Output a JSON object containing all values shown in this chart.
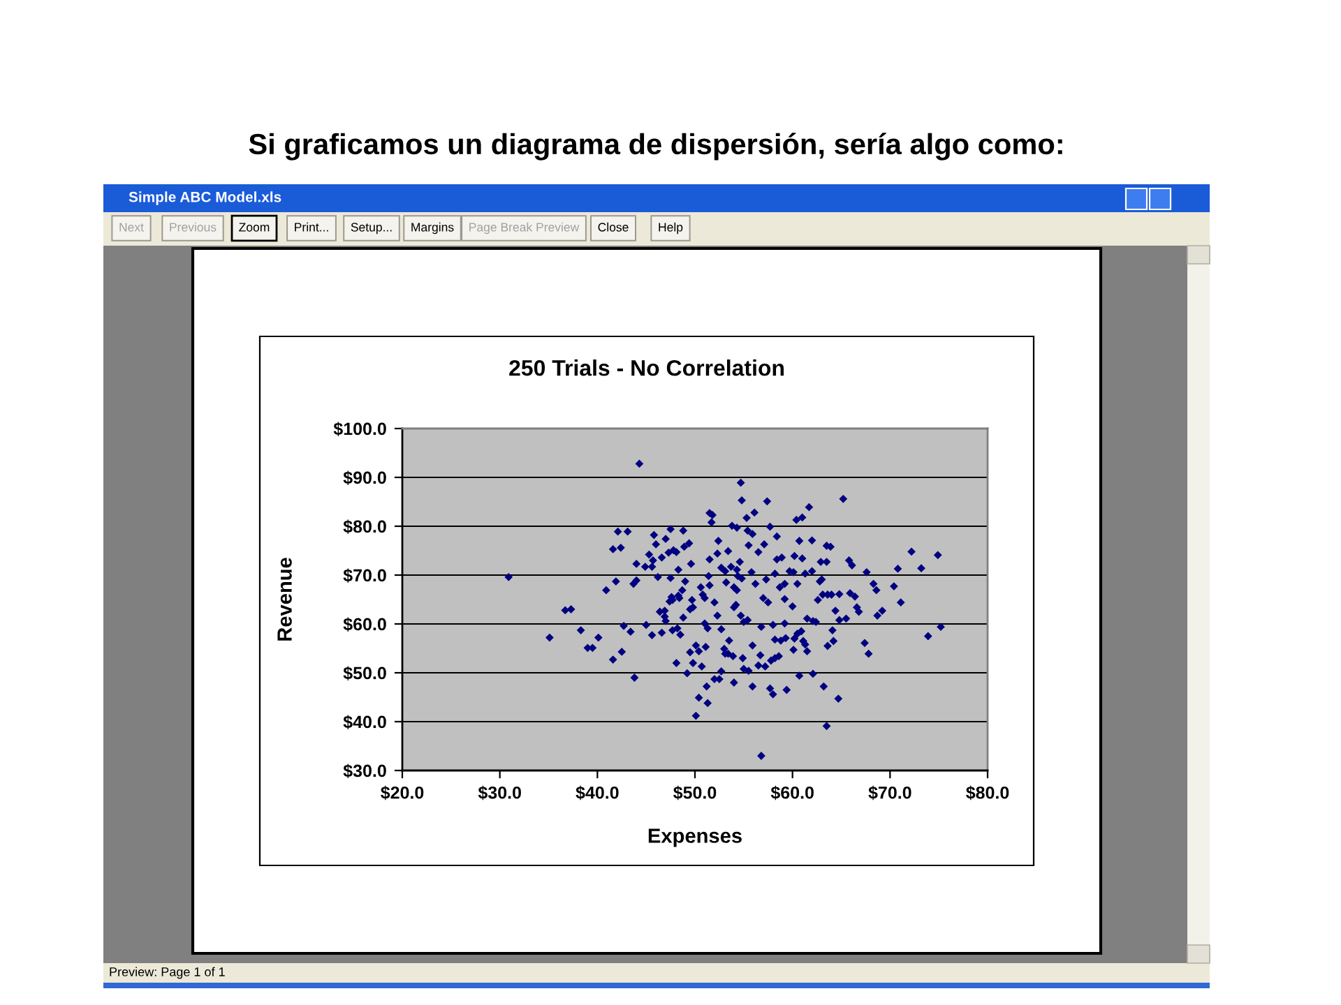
{
  "chart_data": {
    "type": "scatter",
    "title": "Si graficamos un diagrama de dispersión, sería algo como:",
    "subtitle": "250 Trials - No Correlation",
    "xlabel": "Expenses",
    "ylabel": "Revenue",
    "annotations": [
      "Simple ABC Model.xls",
      "Next",
      "Previous",
      "Zoom",
      "Print...",
      "Setup...",
      "Margins",
      "Page Break Preview",
      "Close",
      "Help",
      "Preview: Page 1 of 1"
    ],
    "marker": "diamond",
    "grid": "y",
    "xlim": [
      20,
      80
    ],
    "xticks": [
      {
        "value": 20,
        "label": "$20.0"
      },
      {
        "value": 30,
        "label": "$30.0"
      },
      {
        "value": 40,
        "label": "$40.0"
      },
      {
        "value": 50,
        "label": "$50.0"
      },
      {
        "value": 60,
        "label": "$60.0"
      },
      {
        "value": 70,
        "label": "$70.0"
      },
      {
        "value": 80,
        "label": "$80.0"
      }
    ],
    "ylim": [
      30,
      100
    ],
    "yticks": [
      {
        "value": 30,
        "label": "$30.0"
      },
      {
        "value": 40,
        "label": "$40.0"
      },
      {
        "value": 50,
        "label": "$50.0"
      },
      {
        "value": 60,
        "label": "$60.0"
      },
      {
        "value": 70,
        "label": "$70.0"
      },
      {
        "value": 80,
        "label": "$80.0"
      },
      {
        "value": 90,
        "label": "$90.0"
      },
      {
        "value": 100,
        "label": "$100.0"
      }
    ],
    "series": [
      {
        "color": "#000080",
        "x": [
          36.7,
          37.3,
          38.3,
          35.1,
          40.1,
          39.0,
          39.5,
          41.6,
          42.5,
          43.8,
          42.7,
          43.4,
          45.0,
          45.6,
          46.6,
          47.7,
          48.2,
          48.5,
          48.1,
          49.2,
          49.8,
          49.5,
          50.1,
          50.1,
          50.4,
          46.4,
          46.9,
          46.9,
          47.0,
          47.4,
          47.7,
          48.4,
          48.8,
          49.7,
          49.5,
          49.8,
          44.3,
          30.9,
          42.1,
          43.1,
          41.6,
          42.4,
          45.8,
          47.0,
          46.0,
          47.5,
          48.8,
          47.3,
          47.8,
          48.1,
          48.9,
          49.4,
          45.3,
          46.6,
          44.0,
          44.9,
          45.7,
          45.6,
          46.2,
          47.5,
          48.3,
          49.6,
          49.0,
          40.9,
          41.9,
          43.7,
          44.0,
          47.6,
          48.3,
          48.7,
          54.7,
          54.8,
          57.4,
          65.2,
          61.7,
          51.5,
          51.8,
          51.7,
          56.1,
          55.3,
          60.4,
          61.0,
          53.8,
          54.3,
          55.4,
          55.9,
          57.7,
          58.4,
          52.4,
          55.5,
          57.1,
          60.7,
          62.0,
          63.5,
          63.9,
          53.4,
          52.3,
          56.5,
          58.4,
          58.9,
          60.2,
          61.0,
          51.5,
          54.6,
          62.9,
          63.5,
          65.8,
          66.1,
          72.2,
          74.9,
          70.8,
          73.2,
          67.6,
          52.7,
          53.1,
          53.7,
          54.3,
          55.8,
          57.3,
          58.2,
          59.7,
          60.1,
          61.3,
          62.0,
          51.4,
          54.4,
          54.8,
          53.2,
          51.5,
          54.0,
          54.3,
          56.2,
          58.7,
          59.2,
          60.5,
          62.8,
          63.0,
          68.3,
          68.6,
          70.4,
          63.1,
          63.6,
          64.0,
          64.8,
          65.9,
          66.4,
          50.6,
          50.8,
          57.0,
          56.8,
          63.5,
          64.7,
          63.2,
          51.3,
          51.2,
          52.0,
          52.5,
          54.0,
          55.9,
          57.7,
          58.0,
          59.4,
          60.7,
          62.1,
          52.7,
          50.7,
          55.0,
          55.5,
          56.5,
          57.2,
          57.8,
          58.2,
          58.6,
          55.9,
          56.7,
          54.9,
          53.4,
          53.9,
          53.0,
          53.1,
          53.5,
          51.1,
          50.4,
          60.1,
          61.5,
          61.1,
          61.3,
          60.2,
          60.5,
          60.9,
          59.3,
          58.8,
          58.2,
          63.6,
          64.2,
          64.1,
          67.4,
          67.8,
          73.9,
          75.2,
          56.8,
          58.0,
          59.2,
          61.5,
          62.1,
          62.4,
          64.8,
          65.5,
          64.4,
          68.7,
          69.2,
          71.1,
          66.6,
          66.8,
          59.2,
          60.0,
          57.5,
          54.7,
          55.4,
          55.0,
          54.2,
          54.0,
          52.0,
          51.0,
          52.3,
          51.0,
          51.3,
          52.7,
          62.6
        ],
        "values": [
          62.8,
          63.0,
          58.7,
          57.2,
          57.2,
          55.1,
          55.1,
          52.7,
          54.3,
          49.0,
          59.6,
          58.4,
          59.8,
          57.7,
          58.2,
          58.7,
          59.1,
          57.8,
          52.0,
          49.9,
          52.0,
          54.2,
          55.6,
          41.2,
          44.9,
          62.5,
          62.7,
          61.5,
          60.6,
          64.6,
          64.9,
          65.3,
          61.3,
          64.9,
          63.0,
          63.4,
          92.8,
          69.6,
          78.9,
          78.9,
          75.3,
          75.6,
          78.2,
          77.4,
          76.3,
          79.4,
          79.1,
          74.6,
          75.1,
          74.7,
          75.8,
          76.5,
          74.2,
          73.6,
          72.3,
          71.7,
          73.0,
          71.7,
          69.6,
          69.4,
          71.1,
          72.3,
          68.7,
          66.9,
          68.7,
          68.2,
          68.9,
          65.5,
          65.8,
          66.9,
          88.9,
          85.3,
          85.1,
          85.6,
          83.9,
          82.7,
          82.3,
          80.8,
          82.8,
          81.7,
          81.3,
          81.8,
          80.1,
          79.7,
          79.1,
          78.4,
          79.9,
          77.9,
          77.0,
          76.1,
          76.3,
          77.0,
          77.1,
          76.0,
          75.8,
          74.9,
          74.4,
          74.7,
          73.2,
          73.6,
          73.9,
          73.4,
          73.2,
          72.7,
          72.7,
          72.7,
          73.0,
          72.0,
          74.8,
          74.1,
          71.3,
          71.4,
          70.6,
          71.5,
          70.8,
          71.7,
          71.1,
          70.6,
          69.1,
          70.3,
          70.8,
          70.6,
          70.3,
          70.8,
          69.8,
          69.8,
          69.3,
          68.5,
          67.9,
          67.5,
          66.9,
          68.2,
          67.5,
          68.2,
          68.2,
          68.7,
          69.1,
          68.2,
          66.9,
          67.7,
          66.0,
          66.0,
          66.0,
          66.1,
          66.3,
          65.6,
          67.5,
          66.0,
          65.3,
          33.0,
          39.1,
          44.7,
          47.2,
          43.8,
          47.2,
          48.7,
          48.7,
          48.0,
          47.2,
          46.8,
          45.6,
          46.5,
          49.4,
          49.8,
          50.3,
          51.3,
          50.8,
          50.4,
          51.5,
          51.3,
          52.5,
          53.0,
          53.4,
          55.6,
          53.6,
          53.0,
          53.9,
          53.4,
          54.9,
          53.9,
          56.6,
          55.3,
          54.4,
          54.7,
          54.4,
          56.5,
          55.8,
          57.0,
          58.0,
          58.5,
          57.1,
          56.6,
          56.8,
          55.5,
          56.5,
          58.7,
          56.1,
          53.9,
          57.5,
          59.4,
          59.4,
          59.8,
          60.1,
          61.1,
          60.6,
          60.4,
          60.8,
          61.1,
          62.7,
          61.7,
          62.7,
          64.4,
          63.4,
          62.5,
          65.1,
          63.6,
          64.4,
          61.7,
          60.8,
          60.4,
          63.9,
          63.4,
          64.4,
          65.3,
          61.7,
          60.1,
          59.1,
          58.9,
          64.9
        ]
      }
    ]
  }
}
